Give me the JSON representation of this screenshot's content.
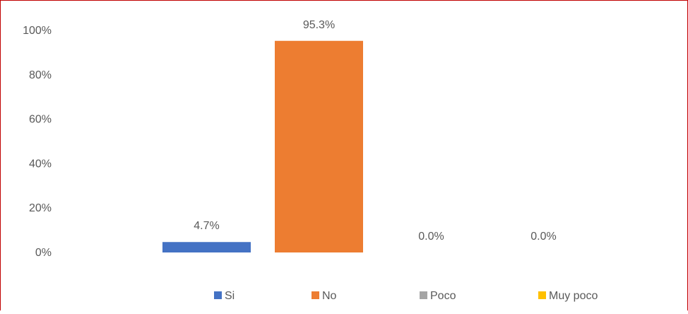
{
  "chart_data": {
    "type": "bar",
    "categories": [
      "Si",
      "No",
      "Poco",
      "Muy poco"
    ],
    "values": [
      4.7,
      95.3,
      0.0,
      0.0
    ],
    "data_labels": [
      "4.7%",
      "95.3%",
      "0.0%",
      "0.0%"
    ],
    "colors": [
      "#4472c4",
      "#ed7d31",
      "#a5a5a5",
      "#ffc000"
    ],
    "y_ticks": [
      0,
      20,
      40,
      60,
      80,
      100
    ],
    "y_tick_labels": [
      "0%",
      "20%",
      "40%",
      "60%",
      "80%",
      "100%"
    ],
    "ylim": [
      0,
      100
    ],
    "grid": false,
    "legend_position": "bottom",
    "legend": [
      "Si",
      "No",
      "Poco",
      "Muy poco"
    ]
  }
}
